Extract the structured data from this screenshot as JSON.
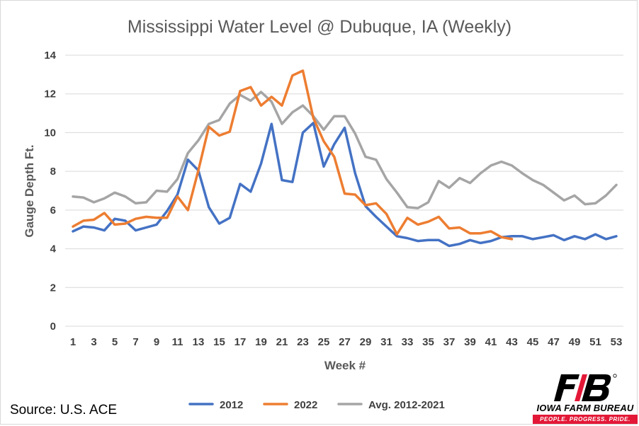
{
  "chart_data": {
    "type": "line",
    "title": "Mississippi Water Level @ Dubuque, IA (Weekly)",
    "xlabel": "Week #",
    "ylabel": "Gauge Depth Ft.",
    "ylim": [
      0,
      14
    ],
    "y_ticks": [
      0,
      2,
      4,
      6,
      8,
      10,
      12,
      14
    ],
    "x_tick_labels": [
      "1",
      "3",
      "5",
      "7",
      "9",
      "11",
      "13",
      "15",
      "17",
      "19",
      "21",
      "23",
      "25",
      "27",
      "29",
      "31",
      "33",
      "35",
      "37",
      "39",
      "41",
      "43",
      "45",
      "47",
      "49",
      "51",
      "53"
    ],
    "grid": "horizontal",
    "legend_position": "bottom",
    "series": [
      {
        "name": "2012",
        "color": "#4472c4",
        "x": [
          1,
          2,
          3,
          4,
          5,
          6,
          7,
          8,
          9,
          10,
          11,
          12,
          13,
          14,
          15,
          16,
          17,
          18,
          19,
          20,
          21,
          22,
          23,
          24,
          25,
          26,
          27,
          28,
          29,
          30,
          31,
          32,
          33,
          34,
          35,
          36,
          37,
          38,
          39,
          40,
          41,
          42,
          43,
          44,
          45,
          46,
          47,
          48,
          49,
          50,
          51,
          52,
          53
        ],
        "values": [
          4.9,
          5.15,
          5.1,
          4.95,
          5.55,
          5.45,
          4.95,
          5.1,
          5.25,
          5.95,
          6.8,
          8.6,
          8.05,
          6.15,
          5.3,
          5.6,
          7.35,
          6.95,
          8.4,
          10.45,
          7.55,
          7.45,
          10.0,
          10.5,
          8.25,
          9.4,
          10.25,
          7.9,
          6.2,
          5.65,
          5.15,
          4.65,
          4.55,
          4.4,
          4.45,
          4.45,
          4.15,
          4.25,
          4.45,
          4.3,
          4.4,
          4.6,
          4.65,
          4.65,
          4.5,
          4.6,
          4.7,
          4.45,
          4.65,
          4.5,
          4.75,
          4.5,
          4.65
        ]
      },
      {
        "name": "2022",
        "color": "#ed7d31",
        "x": [
          1,
          2,
          3,
          4,
          5,
          6,
          7,
          8,
          9,
          10,
          11,
          12,
          13,
          14,
          15,
          16,
          17,
          18,
          19,
          20,
          21,
          22,
          23,
          24,
          25,
          26,
          27,
          28,
          29,
          30,
          31,
          32,
          33,
          34,
          35,
          36,
          37,
          38,
          39,
          40,
          41,
          42,
          43
        ],
        "values": [
          5.15,
          5.45,
          5.5,
          5.85,
          5.25,
          5.3,
          5.55,
          5.65,
          5.6,
          5.6,
          6.7,
          6.0,
          8.05,
          10.3,
          9.85,
          10.05,
          12.15,
          12.35,
          11.4,
          11.85,
          11.4,
          12.95,
          13.2,
          10.75,
          9.55,
          8.75,
          6.85,
          6.8,
          6.25,
          6.35,
          5.8,
          4.75,
          5.6,
          5.25,
          5.4,
          5.65,
          5.05,
          5.1,
          4.8,
          4.8,
          4.9,
          4.6,
          4.5
        ]
      },
      {
        "name": "Avg. 2012-2021",
        "color": "#a5a5a5",
        "x": [
          1,
          2,
          3,
          4,
          5,
          6,
          7,
          8,
          9,
          10,
          11,
          12,
          13,
          14,
          15,
          16,
          17,
          18,
          19,
          20,
          21,
          22,
          23,
          24,
          25,
          26,
          27,
          28,
          29,
          30,
          31,
          32,
          33,
          34,
          35,
          36,
          37,
          38,
          39,
          40,
          41,
          42,
          43,
          44,
          45,
          46,
          47,
          48,
          49,
          50,
          51,
          52,
          53
        ],
        "values": [
          6.7,
          6.65,
          6.4,
          6.6,
          6.9,
          6.7,
          6.35,
          6.4,
          7.0,
          6.95,
          7.6,
          8.95,
          9.6,
          10.45,
          10.65,
          11.5,
          11.95,
          11.65,
          12.1,
          11.6,
          10.45,
          11.05,
          11.4,
          10.85,
          10.15,
          10.85,
          10.85,
          9.95,
          8.75,
          8.6,
          7.6,
          6.9,
          6.15,
          6.1,
          6.4,
          7.5,
          7.15,
          7.65,
          7.4,
          7.9,
          8.3,
          8.5,
          8.3,
          7.9,
          7.55,
          7.3,
          6.9,
          6.5,
          6.75,
          6.3,
          6.35,
          6.75,
          7.3
        ]
      }
    ]
  },
  "footer": {
    "source": "Source: U.S. ACE"
  },
  "logo": {
    "name": "IOWA FARM BUREAU",
    "tagline": "PEOPLE. PROGRESS. PRIDE.",
    "mark_text": "FB",
    "primary_color": "#000000",
    "accent_color": "#e31837"
  }
}
